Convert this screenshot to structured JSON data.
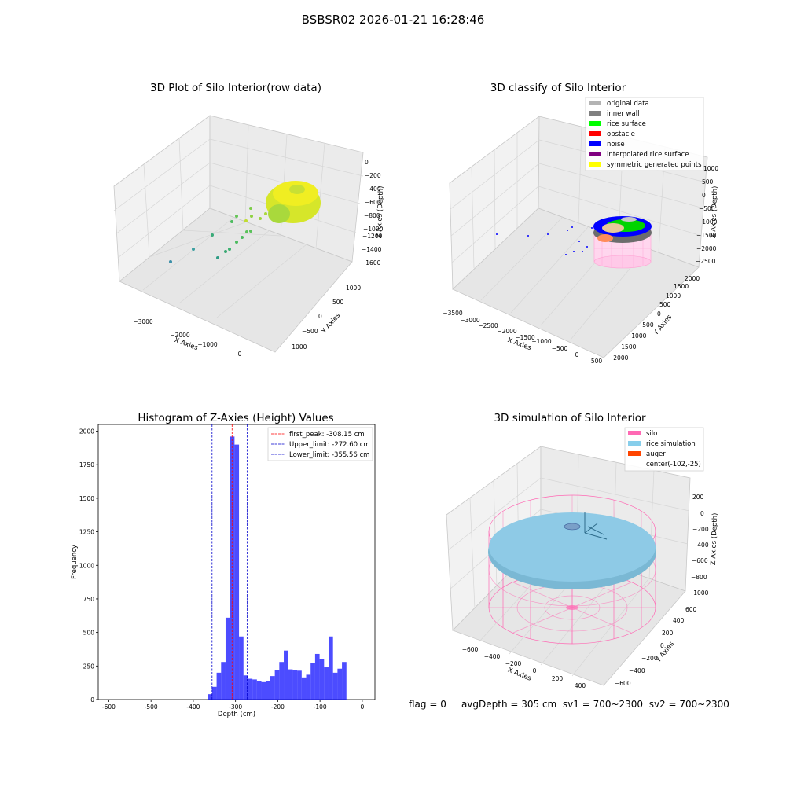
{
  "suptitle": "BSBSR02 2026-01-21 16:28:46",
  "status": {
    "flag": "flag = 0",
    "avg_depth": "avgDepth = 305 cm",
    "sv1": "sv1 = 700~2300",
    "sv2": "sv2 = 700~2300"
  },
  "chart_data": [
    {
      "type": "scatter",
      "title": "3D Plot of Silo Interior(row data)",
      "xlabel": "X Axies",
      "ylabel": "Y Axies",
      "zlabel": "Z Axies (Depth)",
      "x_ticks": [
        "−3000",
        "−2000",
        "−1000",
        "0"
      ],
      "y_ticks": [
        "−1000",
        "−500",
        "0",
        "500",
        "1000"
      ],
      "z_ticks": [
        "−1600",
        "−1400",
        "−1200",
        "−1000",
        "−800",
        "−600",
        "−400",
        "−200",
        "0"
      ],
      "colors": {
        "low": "#3b8fa8",
        "mid": "#3cb371",
        "high": "#f0ee22"
      }
    },
    {
      "type": "scatter",
      "title": "3D classify of Silo Interior",
      "xlabel": "X Axies",
      "ylabel": "Y Axies",
      "zlabel": "Z Axies (Depth)",
      "x_ticks": [
        "−3500",
        "−3000",
        "−2500",
        "−2000",
        "−1500",
        "−1000",
        "−500",
        "0",
        "500"
      ],
      "y_ticks": [
        "−2000",
        "−1500",
        "−1000",
        "−500",
        "0",
        "500",
        "1000",
        "1500",
        "2000"
      ],
      "z_ticks": [
        "−2500",
        "−2000",
        "−1500",
        "−1000",
        "−500",
        "0",
        "500",
        "1000"
      ],
      "legend": [
        {
          "label": "original data",
          "color": "#b3b3b3"
        },
        {
          "label": "inner wall",
          "color": "#808080"
        },
        {
          "label": "rice surface",
          "color": "#00ff00"
        },
        {
          "label": "obstacle",
          "color": "#ff0000"
        },
        {
          "label": "noise",
          "color": "#0000ff"
        },
        {
          "label": "interpolated rice surface",
          "color": "#800080"
        },
        {
          "label": "symmetric generated points",
          "color": "#ffff00"
        }
      ],
      "legend_position": "top-right"
    },
    {
      "type": "bar",
      "title": "Histogram of Z-Axies (Height) Values",
      "xlabel": "Depth (cm)",
      "ylabel": "Frequency",
      "xlim": [
        -625,
        30
      ],
      "ylim": [
        0,
        2050
      ],
      "x_ticks": [
        -600,
        -500,
        -400,
        -300,
        -200,
        -100,
        0
      ],
      "y_ticks": [
        0,
        250,
        500,
        750,
        1000,
        1250,
        1500,
        1750,
        2000
      ],
      "bar_color": "#0000ff",
      "bins": {
        "start": -366,
        "width": 10.6,
        "values": [
          40,
          95,
          200,
          280,
          610,
          1960,
          1900,
          470,
          180,
          155,
          150,
          140,
          130,
          135,
          175,
          220,
          280,
          365,
          225,
          220,
          215,
          165,
          185,
          270,
          340,
          300,
          240,
          470,
          200,
          230,
          280
        ]
      },
      "vlines": [
        {
          "label": "first_peak: -308.15 cm",
          "x": -308.15,
          "color": "#ff0000"
        },
        {
          "label": "Upper_limit: -272.60 cm",
          "x": -272.6,
          "color": "#0000cc"
        },
        {
          "label": "Lower_limit: -355.56 cm",
          "x": -355.56,
          "color": "#0000cc"
        }
      ],
      "legend_position": "top-right"
    },
    {
      "type": "scatter",
      "title": "3D simulation of Silo Interior",
      "xlabel": "X Axies",
      "ylabel": "Y Axies",
      "zlabel": "Z Axies (Depth)",
      "x_ticks": [
        "−600",
        "−400",
        "−200",
        "0",
        "200",
        "400"
      ],
      "y_ticks": [
        "−600",
        "−400",
        "−200",
        "0",
        "200",
        "400",
        "600"
      ],
      "z_ticks": [
        "−1000",
        "−800",
        "−600",
        "−400",
        "−200",
        "0",
        "200"
      ],
      "legend": [
        {
          "label": "silo",
          "color": "#ff69b4"
        },
        {
          "label": "rice simulation",
          "color": "#87ceeb"
        },
        {
          "label": "auger",
          "color": "#ff4500"
        },
        {
          "label": "center(-102,-25)",
          "color": ""
        }
      ],
      "legend_position": "top-right"
    }
  ]
}
